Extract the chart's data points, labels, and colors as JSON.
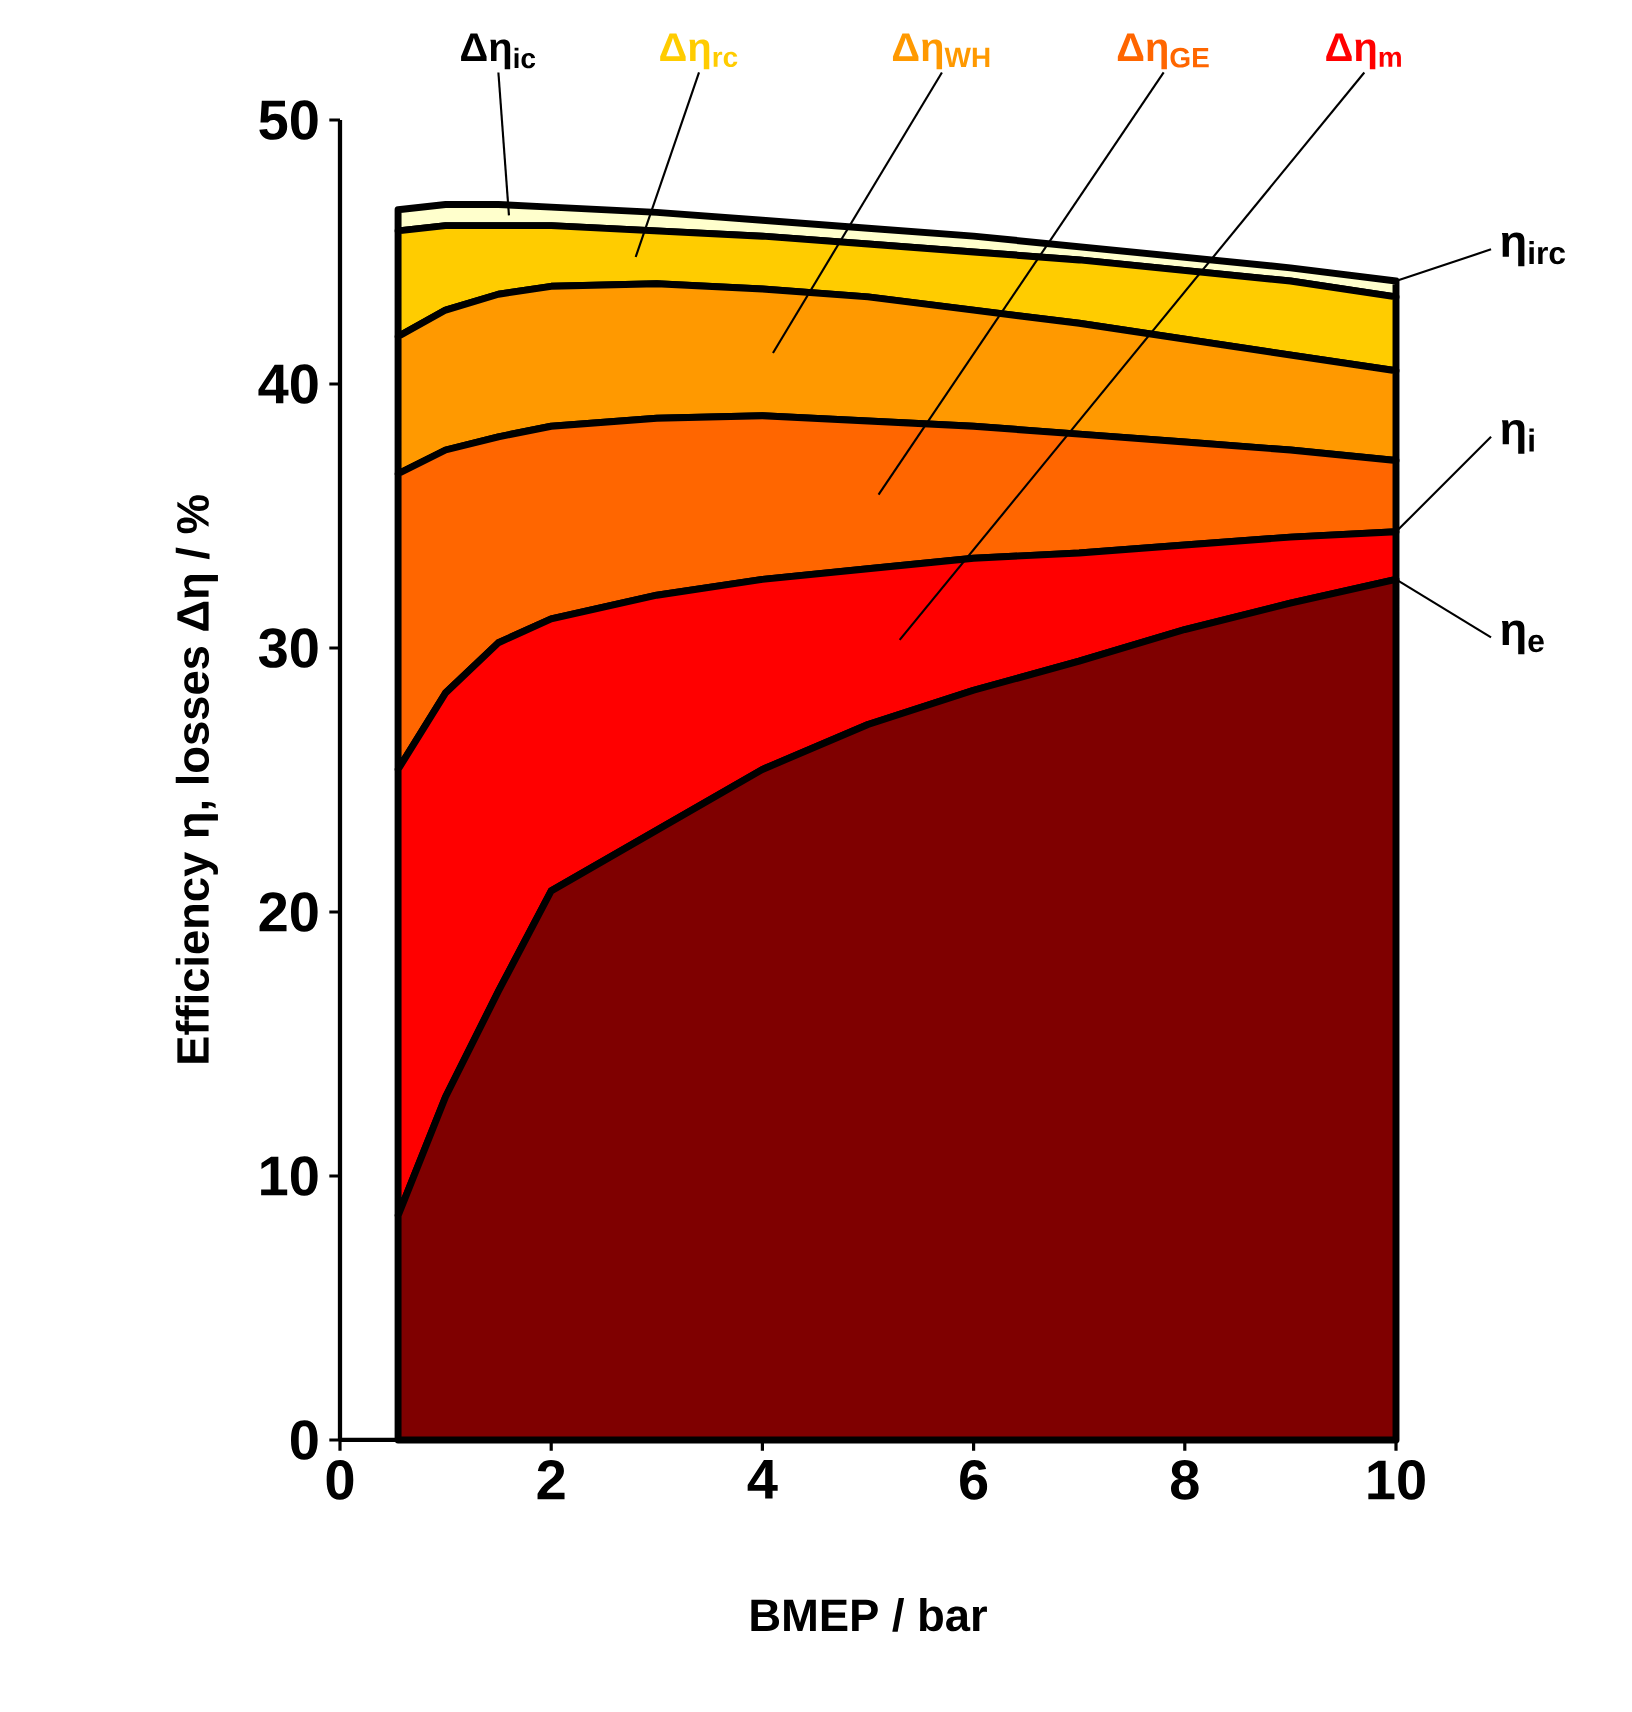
{
  "chart_data": {
    "type": "area",
    "stacked": true,
    "xlabel": "BMEP / bar",
    "ylabel": "Efficiency η, losses Δη / %",
    "x": [
      0.55,
      1,
      1.5,
      2,
      3,
      4,
      5,
      6,
      7,
      8,
      9,
      10
    ],
    "series": [
      {
        "color": "#7f0000",
        "values": [
          8.5,
          13,
          17,
          20.8,
          23.1,
          25.4,
          27.1,
          28.4,
          29.5,
          30.7,
          31.7,
          32.6
        ]
      },
      {
        "name": "Δη$_{m}$",
        "color": "#ff0000",
        "values": [
          16.9,
          15.3,
          13.2,
          10.3,
          8.9,
          7.2,
          5.9,
          5.0,
          4.1,
          3.2,
          2.5,
          1.8
        ]
      },
      {
        "name": "Δη$_{GE}$",
        "color": "#ff6600",
        "values": [
          11.2,
          9.2,
          7.8,
          7.3,
          6.7,
          6.2,
          5.6,
          5.0,
          4.5,
          3.9,
          3.3,
          2.7
        ]
      },
      {
        "name": "Δη$_{WH}$",
        "color": "#ff9900",
        "values": [
          5.2,
          5.3,
          5.4,
          5.3,
          5.1,
          4.8,
          4.7,
          4.4,
          4.2,
          3.9,
          3.6,
          3.4
        ]
      },
      {
        "name": "Δη$_{rc}$",
        "color": "#ffcc00",
        "values": [
          4.0,
          3.2,
          2.6,
          2.3,
          2.0,
          2.0,
          2.0,
          2.2,
          2.4,
          2.6,
          2.8,
          2.8
        ]
      },
      {
        "name": "Δη$_{ic}$",
        "color": "#ffffcc",
        "values": [
          0.8,
          0.8,
          0.8,
          0.7,
          0.7,
          0.6,
          0.6,
          0.6,
          0.5,
          0.5,
          0.5,
          0.6
        ]
      }
    ],
    "annotations": [
      "η$_{irc}$",
      "η$_{i}$",
      "η$_{e}$"
    ],
    "xlim": [
      0,
      10
    ],
    "ylim": [
      0,
      50
    ],
    "xticks": [
      0,
      2,
      4,
      6,
      8,
      10
    ],
    "yticks": [
      0,
      10,
      20,
      30,
      40,
      50
    ]
  }
}
